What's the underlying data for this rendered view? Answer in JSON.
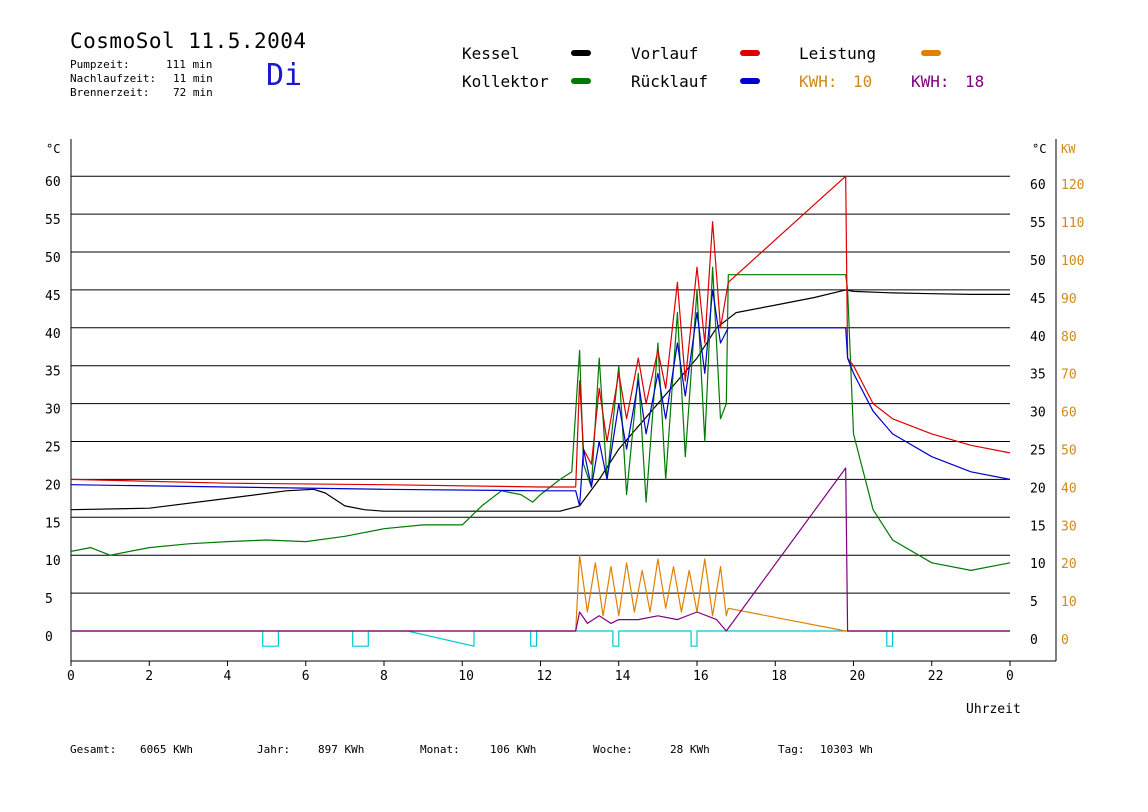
{
  "header": {
    "title": "CosmoSol 11.5.2004",
    "day": "Di",
    "stats": [
      {
        "label": "Pumpzeit:",
        "value": "111 min"
      },
      {
        "label": "Nachlaufzeit:",
        "value": "11 min"
      },
      {
        "label": "Brennerzeit:",
        "value": "72 min"
      }
    ]
  },
  "legend": {
    "kessel": "Kessel",
    "kollektor": "Kollektor",
    "vorlauf": "Vorlauf",
    "ruecklauf": "Rücklauf",
    "leistung": "Leistung",
    "kwh1_label": "KWH:",
    "kwh1_value": "10",
    "kwh2_label": "KWH:",
    "kwh2_value": "18"
  },
  "colors": {
    "kessel": "#000000",
    "kollektor": "#007a00",
    "vorlauf": "#dd0000",
    "ruecklauf": "#0000cc",
    "leistung": "#e08000",
    "kwh2": "#800080",
    "pump": "#00c8d0",
    "kwh_text": "#d08a1a"
  },
  "axes": {
    "left_unit": "°C",
    "right_unit": "°C",
    "right2_unit": "KW",
    "xlabel": "Uhrzeit"
  },
  "footer": [
    {
      "label": "Gesamt:",
      "value": "6065 KWh"
    },
    {
      "label": "Jahr:",
      "value": "897 KWh"
    },
    {
      "label": "Monat:",
      "value": "106 KWh"
    },
    {
      "label": "Woche:",
      "value": "28 KWh"
    },
    {
      "label": "Tag:",
      "value": "10303 Wh"
    }
  ],
  "chart_data": {
    "type": "line",
    "title": "CosmoSol 11.5.2004",
    "xlabel": "Uhrzeit",
    "ylabel": "°C",
    "xlim": [
      0,
      24
    ],
    "ylim": [
      -3,
      65
    ],
    "y2lim": [
      -6,
      130
    ],
    "grid": true,
    "x_ticks": [
      "0",
      "2",
      "4",
      "6",
      "8",
      "10",
      "12",
      "14",
      "16",
      "18",
      "20",
      "22",
      "0"
    ],
    "y_ticks": [
      0,
      5,
      10,
      15,
      20,
      25,
      30,
      35,
      40,
      45,
      50,
      55,
      60
    ],
    "y2_ticks": [
      0,
      10,
      20,
      30,
      40,
      50,
      60,
      70,
      80,
      90,
      100,
      110,
      120
    ],
    "series": [
      {
        "name": "Kessel",
        "axis": "left",
        "x": [
          0,
          2,
          4,
          5.5,
          6.2,
          6.5,
          7,
          7.5,
          8,
          10,
          12,
          12.5,
          13,
          13.5,
          14,
          14.5,
          15,
          15.5,
          16,
          16.5,
          17,
          18,
          19,
          19.8,
          20,
          21,
          22,
          23,
          24
        ],
        "y": [
          16,
          16.2,
          17.5,
          18.5,
          18.7,
          18.2,
          16.5,
          16,
          15.8,
          15.8,
          15.8,
          15.8,
          16.5,
          20,
          24,
          27,
          30,
          33,
          36,
          40,
          42,
          43,
          44,
          45,
          44.8,
          44.6,
          44.5,
          44.4,
          44.4
        ]
      },
      {
        "name": "Kollektor",
        "axis": "left",
        "x": [
          0,
          0.5,
          1,
          2,
          3,
          4,
          5,
          6,
          7,
          8,
          9,
          10,
          10.5,
          11,
          11.5,
          11.8,
          12,
          12.5,
          12.8,
          13,
          13.1,
          13.3,
          13.5,
          13.7,
          14,
          14.2,
          14.5,
          14.7,
          15,
          15.2,
          15.5,
          15.7,
          16,
          16.2,
          16.4,
          16.6,
          16.75,
          16.8,
          17,
          18,
          19.8,
          19.85,
          20,
          20.5,
          21,
          22,
          23,
          24
        ],
        "y": [
          10.5,
          11,
          10,
          11,
          11.5,
          11.8,
          12,
          11.8,
          12.5,
          13.5,
          14,
          14,
          16.5,
          18.5,
          18,
          17,
          18,
          20,
          21,
          37,
          22,
          19,
          36,
          20,
          35,
          18,
          34,
          17,
          38,
          20,
          42,
          23,
          45,
          25,
          48,
          28,
          30,
          47,
          47,
          47,
          47,
          45,
          26,
          16,
          12,
          9,
          8,
          9
        ]
      },
      {
        "name": "Vorlauf",
        "axis": "left",
        "x": [
          0,
          4,
          8,
          12,
          12.9,
          13,
          13.1,
          13.3,
          13.5,
          13.7,
          14,
          14.2,
          14.5,
          14.7,
          15,
          15.2,
          15.5,
          15.7,
          16,
          16.2,
          16.4,
          16.6,
          16.8,
          19.8,
          19.85,
          20,
          20.5,
          21,
          22,
          23,
          24
        ],
        "y": [
          20,
          19.5,
          19.3,
          19,
          19,
          33,
          24,
          22,
          32,
          25,
          34,
          28,
          36,
          30,
          37,
          32,
          46,
          33,
          48,
          38,
          54,
          40,
          46,
          60,
          36,
          35,
          30,
          28,
          26,
          24.5,
          23.5
        ]
      },
      {
        "name": "Rücklauf",
        "axis": "left",
        "x": [
          0,
          4,
          8,
          12,
          12.9,
          13,
          13.1,
          13.3,
          13.5,
          13.7,
          14,
          14.2,
          14.5,
          14.7,
          15,
          15.2,
          15.5,
          15.7,
          16,
          16.2,
          16.4,
          16.6,
          16.8,
          19.8,
          19.85,
          20,
          20.5,
          21,
          22,
          23,
          24
        ],
        "y": [
          19.3,
          19,
          18.7,
          18.5,
          18.5,
          16.5,
          24,
          19,
          25,
          20,
          30,
          24,
          33,
          26,
          34,
          28,
          38,
          31,
          42,
          34,
          45,
          38,
          40,
          40,
          36,
          34,
          29,
          26,
          23,
          21,
          20
        ]
      },
      {
        "name": "Leistung",
        "axis": "right",
        "x": [
          0,
          12.9,
          13,
          13.2,
          13.4,
          13.6,
          13.8,
          14,
          14.2,
          14.4,
          14.6,
          14.8,
          15,
          15.2,
          15.4,
          15.6,
          15.8,
          16,
          16.2,
          16.4,
          16.6,
          16.75,
          16.8,
          19.8,
          24
        ],
        "y": [
          0,
          0,
          20,
          5,
          18,
          4,
          17,
          4,
          18,
          5,
          16,
          5,
          19,
          6,
          17,
          5,
          16,
          5,
          19,
          4,
          17,
          4,
          6,
          0,
          0
        ]
      },
      {
        "name": "KWH",
        "axis": "right",
        "x": [
          0,
          12.9,
          13,
          13.2,
          13.5,
          13.8,
          14,
          14.5,
          15,
          15.5,
          16,
          16.5,
          16.75,
          19.8,
          19.85,
          24
        ],
        "y": [
          0,
          0,
          5,
          2,
          4,
          2,
          3,
          3,
          4,
          3,
          5,
          3,
          0,
          43,
          0,
          0
        ]
      },
      {
        "name": "Pumpe",
        "axis": "left",
        "x": [
          0,
          4.9,
          4.9,
          5.3,
          5.3,
          7.2,
          7.2,
          7.6,
          7.6,
          8.6,
          10.3,
          10.3,
          11.75,
          11.75,
          11.9,
          11.9,
          13.85,
          13.85,
          14,
          14,
          15.85,
          15.85,
          16,
          16,
          20.85,
          20.85,
          21,
          21,
          24
        ],
        "y": [
          0,
          0,
          -2,
          -2,
          0,
          0,
          -2,
          -2,
          0,
          0,
          -2,
          0,
          0,
          -2,
          -2,
          0,
          0,
          -2,
          -2,
          0,
          0,
          -2,
          -2,
          0,
          0,
          -2,
          -2,
          0,
          0
        ]
      }
    ]
  }
}
